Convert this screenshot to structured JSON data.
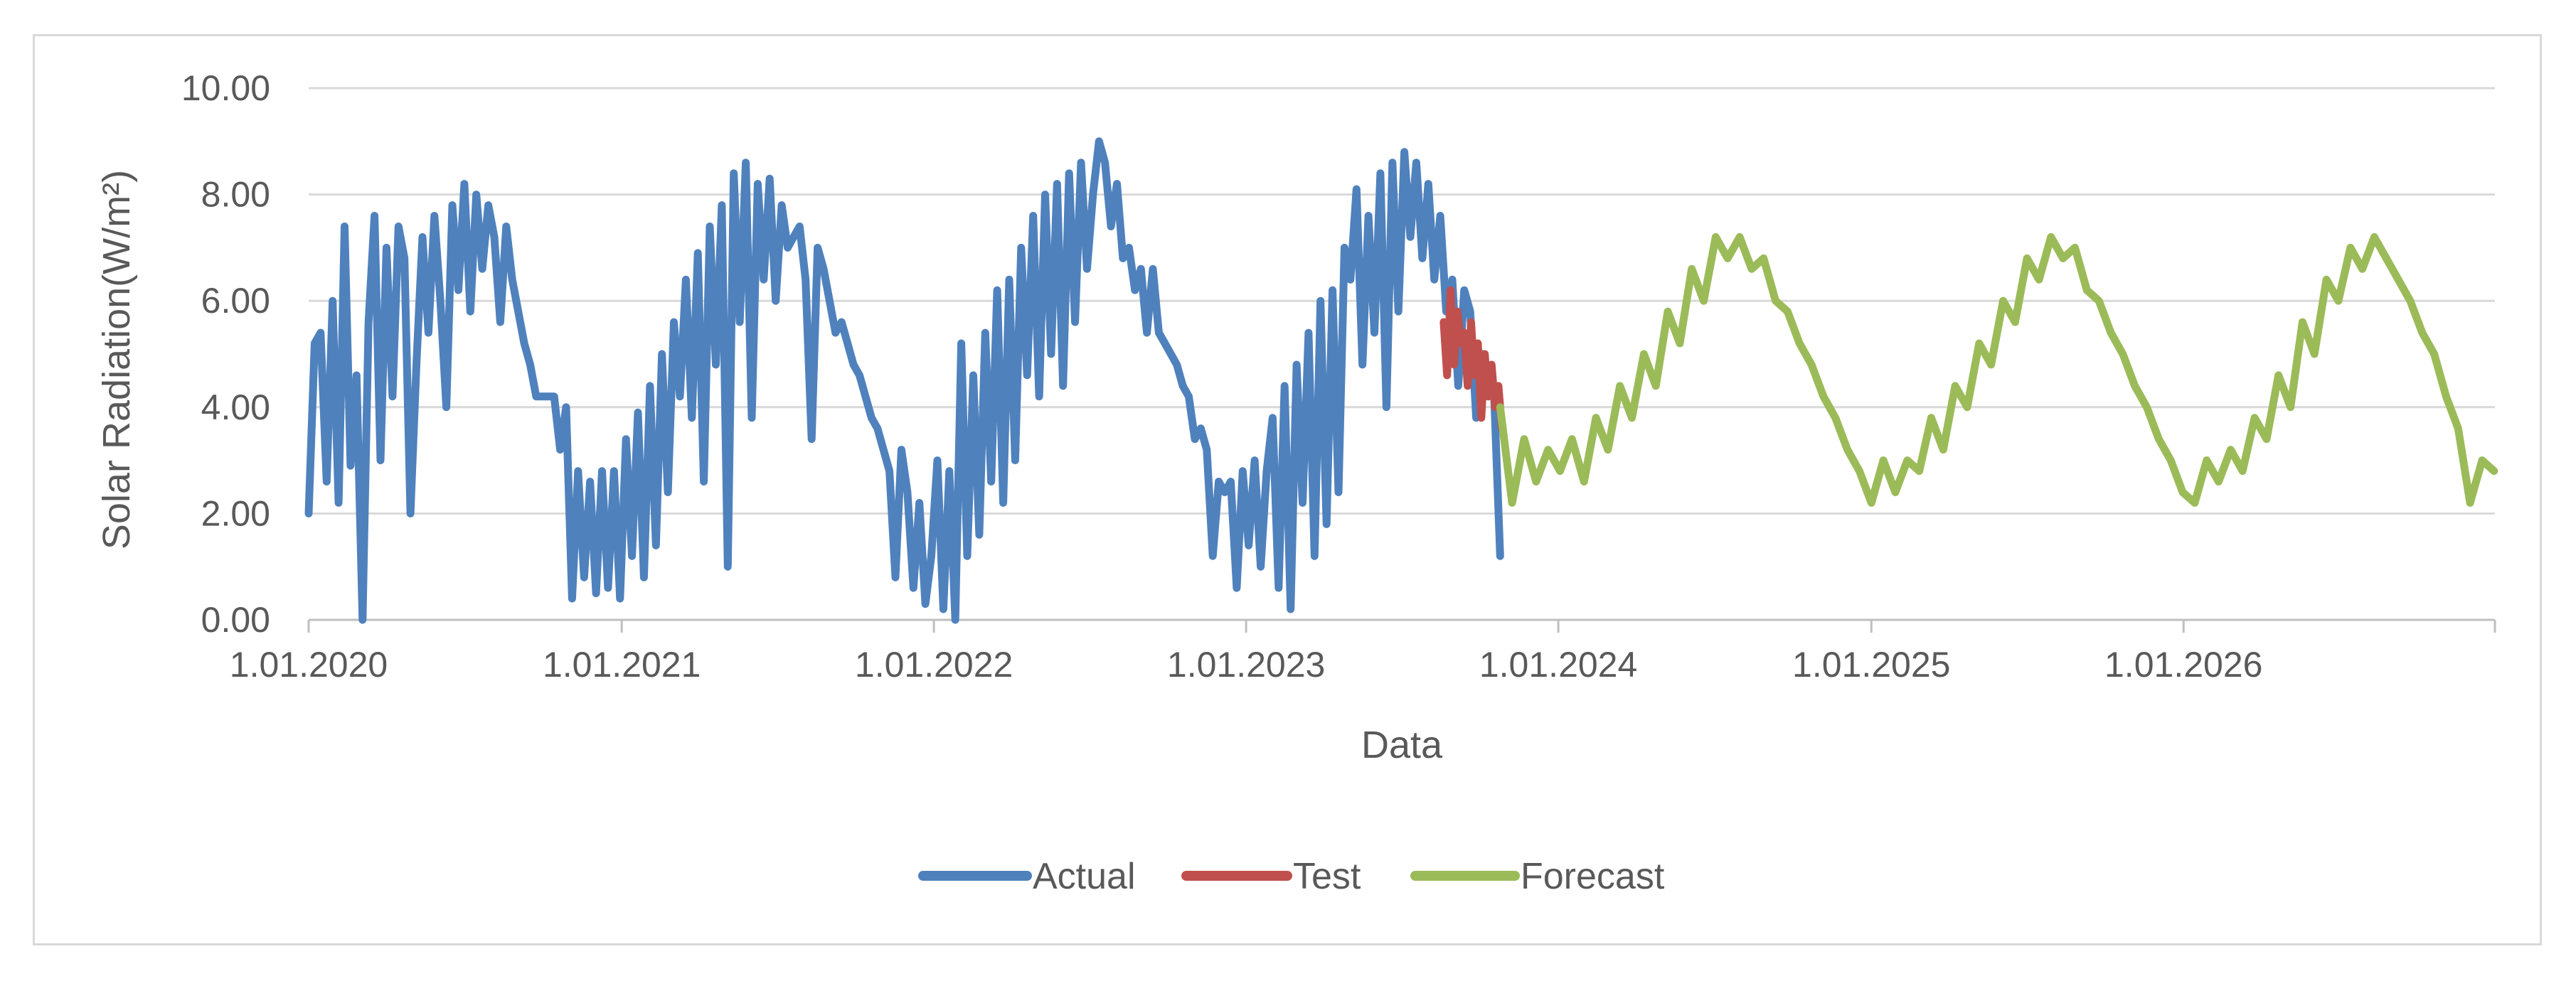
{
  "chart_data": {
    "type": "line",
    "xlabel": "Data",
    "ylabel": "Solar Radiation(W/m²)",
    "ylim": [
      0,
      10
    ],
    "yticks": [
      "0.00",
      "2.00",
      "4.00",
      "6.00",
      "8.00",
      "10.00"
    ],
    "xlim": [
      "2020-01-01",
      "2026-12-31"
    ],
    "xticks": [
      {
        "date": "2020-01-01",
        "label": "1.01.2020"
      },
      {
        "date": "2021-01-01",
        "label": "1.01.2021"
      },
      {
        "date": "2022-01-01",
        "label": "1.01.2022"
      },
      {
        "date": "2023-01-01",
        "label": "1.01.2023"
      },
      {
        "date": "2024-01-01",
        "label": "1.01.2024"
      },
      {
        "date": "2025-01-01",
        "label": "1.01.2025"
      },
      {
        "date": "2026-01-01",
        "label": "1.01.2026"
      }
    ],
    "grid": true,
    "legend_position": "bottom",
    "series": [
      {
        "name": "Actual",
        "color": "#4f81bd",
        "dates": [
          "2020-01-01",
          "2020-01-08",
          "2020-01-15",
          "2020-01-22",
          "2020-01-29",
          "2020-02-05",
          "2020-02-12",
          "2020-02-19",
          "2020-02-26",
          "2020-03-04",
          "2020-03-11",
          "2020-03-18",
          "2020-03-25",
          "2020-04-01",
          "2020-04-08",
          "2020-04-15",
          "2020-04-22",
          "2020-04-29",
          "2020-05-06",
          "2020-05-13",
          "2020-05-20",
          "2020-05-27",
          "2020-06-03",
          "2020-06-10",
          "2020-06-17",
          "2020-06-24",
          "2020-07-01",
          "2020-07-08",
          "2020-07-15",
          "2020-07-22",
          "2020-07-29",
          "2020-08-05",
          "2020-08-12",
          "2020-08-19",
          "2020-08-26",
          "2020-09-02",
          "2020-09-09",
          "2020-09-16",
          "2020-09-23",
          "2020-09-30",
          "2020-10-07",
          "2020-10-14",
          "2020-10-21",
          "2020-10-28",
          "2020-11-04",
          "2020-11-11",
          "2020-11-18",
          "2020-11-25",
          "2020-12-02",
          "2020-12-09",
          "2020-12-16",
          "2020-12-23",
          "2020-12-30",
          "2021-01-06",
          "2021-01-13",
          "2021-01-20",
          "2021-01-27",
          "2021-02-03",
          "2021-02-10",
          "2021-02-17",
          "2021-02-24",
          "2021-03-03",
          "2021-03-10",
          "2021-03-17",
          "2021-03-24",
          "2021-03-31",
          "2021-04-07",
          "2021-04-14",
          "2021-04-21",
          "2021-04-28",
          "2021-05-05",
          "2021-05-12",
          "2021-05-19",
          "2021-05-26",
          "2021-06-02",
          "2021-06-09",
          "2021-06-16",
          "2021-06-23",
          "2021-06-30",
          "2021-07-07",
          "2021-07-14",
          "2021-07-21",
          "2021-07-28",
          "2021-08-04",
          "2021-08-11",
          "2021-08-18",
          "2021-08-25",
          "2021-09-01",
          "2021-09-08",
          "2021-09-15",
          "2021-09-22",
          "2021-09-29",
          "2021-10-06",
          "2021-10-13",
          "2021-10-20",
          "2021-10-27",
          "2021-11-03",
          "2021-11-10",
          "2021-11-17",
          "2021-11-24",
          "2021-12-01",
          "2021-12-08",
          "2021-12-15",
          "2021-12-22",
          "2021-12-29",
          "2022-01-05",
          "2022-01-12",
          "2022-01-19",
          "2022-01-26",
          "2022-02-02",
          "2022-02-09",
          "2022-02-16",
          "2022-02-23",
          "2022-03-02",
          "2022-03-09",
          "2022-03-16",
          "2022-03-23",
          "2022-03-30",
          "2022-04-06",
          "2022-04-13",
          "2022-04-20",
          "2022-04-27",
          "2022-05-04",
          "2022-05-11",
          "2022-05-18",
          "2022-05-25",
          "2022-06-01",
          "2022-06-08",
          "2022-06-15",
          "2022-06-22",
          "2022-06-29",
          "2022-07-06",
          "2022-07-13",
          "2022-07-20",
          "2022-07-27",
          "2022-08-03",
          "2022-08-10",
          "2022-08-17",
          "2022-08-24",
          "2022-08-31",
          "2022-09-07",
          "2022-09-14",
          "2022-09-21",
          "2022-09-28",
          "2022-10-05",
          "2022-10-12",
          "2022-10-19",
          "2022-10-26",
          "2022-11-02",
          "2022-11-09",
          "2022-11-16",
          "2022-11-23",
          "2022-11-30",
          "2022-12-07",
          "2022-12-14",
          "2022-12-21",
          "2022-12-28",
          "2023-01-04",
          "2023-01-11",
          "2023-01-18",
          "2023-01-25",
          "2023-02-01",
          "2023-02-08",
          "2023-02-15",
          "2023-02-22",
          "2023-03-01",
          "2023-03-08",
          "2023-03-15",
          "2023-03-22",
          "2023-03-29",
          "2023-04-05",
          "2023-04-12",
          "2023-04-19",
          "2023-04-26",
          "2023-05-03",
          "2023-05-10",
          "2023-05-17",
          "2023-05-24",
          "2023-05-31",
          "2023-06-07",
          "2023-06-14",
          "2023-06-21",
          "2023-06-28",
          "2023-07-05",
          "2023-07-12",
          "2023-07-19",
          "2023-07-26",
          "2023-08-02",
          "2023-08-09",
          "2023-08-16",
          "2023-08-23",
          "2023-08-30",
          "2023-09-06",
          "2023-09-13",
          "2023-09-20",
          "2023-09-27",
          "2023-10-04",
          "2023-10-11",
          "2023-10-18",
          "2023-10-25"
        ],
        "values": [
          2.0,
          5.2,
          5.4,
          2.6,
          6.0,
          2.2,
          7.4,
          2.9,
          4.6,
          0.0,
          5.6,
          7.6,
          3.0,
          7.0,
          4.2,
          7.4,
          6.8,
          2.0,
          4.8,
          7.2,
          5.4,
          7.6,
          6.0,
          4.0,
          7.8,
          6.2,
          8.2,
          5.8,
          8.0,
          6.6,
          7.8,
          7.2,
          5.6,
          7.4,
          6.4,
          5.8,
          5.2,
          4.8,
          4.2,
          4.2,
          4.2,
          4.2,
          3.2,
          4.0,
          0.4,
          2.8,
          0.8,
          2.6,
          0.5,
          2.8,
          0.6,
          2.8,
          0.4,
          3.4,
          1.2,
          3.9,
          0.8,
          4.4,
          1.4,
          5.0,
          2.4,
          5.6,
          4.2,
          6.4,
          3.8,
          6.9,
          2.6,
          7.4,
          4.8,
          7.8,
          1.0,
          8.4,
          5.6,
          8.6,
          3.8,
          8.2,
          6.4,
          8.3,
          6.0,
          7.8,
          7.0,
          7.2,
          7.4,
          6.4,
          3.4,
          7.0,
          6.6,
          6.0,
          5.4,
          5.6,
          5.2,
          4.8,
          4.6,
          4.2,
          3.8,
          3.6,
          3.2,
          2.8,
          0.8,
          3.2,
          2.4,
          0.6,
          2.2,
          0.3,
          1.2,
          3.0,
          0.2,
          2.8,
          0.0,
          5.2,
          1.2,
          4.6,
          1.6,
          5.4,
          2.6,
          6.2,
          2.2,
          6.4,
          3.0,
          7.0,
          4.6,
          7.6,
          4.2,
          8.0,
          5.0,
          8.2,
          4.4,
          8.4,
          5.6,
          8.6,
          6.6,
          8.0,
          9.0,
          8.6,
          7.4,
          8.2,
          6.8,
          7.0,
          6.2,
          6.6,
          5.4,
          6.6,
          5.4,
          5.2,
          5.0,
          4.8,
          4.4,
          4.2,
          3.4,
          3.6,
          3.2,
          1.2,
          2.6,
          2.4,
          2.6,
          0.6,
          2.8,
          1.4,
          3.0,
          1.0,
          2.8,
          3.8,
          0.6,
          4.4,
          0.2,
          4.8,
          2.2,
          5.4,
          1.2,
          6.0,
          1.8,
          6.2,
          2.4,
          7.0,
          6.4,
          8.1,
          4.8,
          7.6,
          5.4,
          8.4,
          4.0,
          8.6,
          5.8,
          8.8,
          7.2,
          8.6,
          6.8,
          8.2,
          6.4,
          7.6,
          5.8,
          6.4,
          4.4,
          6.2,
          5.8,
          3.8,
          5.0,
          4.6,
          4.2,
          1.2
        ]
      },
      {
        "name": "Test",
        "color": "#c0504d",
        "dates": [
          "2023-08-20",
          "2023-08-24",
          "2023-08-28",
          "2023-09-01",
          "2023-09-05",
          "2023-09-09",
          "2023-09-13",
          "2023-09-17",
          "2023-09-21",
          "2023-09-25",
          "2023-09-29",
          "2023-10-03",
          "2023-10-07",
          "2023-10-11",
          "2023-10-15",
          "2023-10-19",
          "2023-10-23",
          "2023-10-27"
        ],
        "values": [
          5.6,
          4.6,
          6.2,
          4.8,
          5.8,
          5.2,
          5.4,
          4.4,
          5.6,
          4.6,
          5.2,
          3.8,
          5.0,
          4.2,
          4.8,
          4.0,
          4.4,
          3.6
        ]
      },
      {
        "name": "Forecast",
        "color": "#9bbb59",
        "dates": [
          "2023-10-25",
          "2023-11-08",
          "2023-11-22",
          "2023-12-06",
          "2023-12-20",
          "2024-01-03",
          "2024-01-17",
          "2024-01-31",
          "2024-02-14",
          "2024-02-28",
          "2024-03-13",
          "2024-03-27",
          "2024-04-10",
          "2024-04-24",
          "2024-05-08",
          "2024-05-22",
          "2024-06-05",
          "2024-06-19",
          "2024-07-03",
          "2024-07-17",
          "2024-07-31",
          "2024-08-14",
          "2024-08-28",
          "2024-09-11",
          "2024-09-25",
          "2024-10-09",
          "2024-10-23",
          "2024-11-06",
          "2024-11-20",
          "2024-12-04",
          "2024-12-18",
          "2025-01-01",
          "2025-01-15",
          "2025-01-29",
          "2025-02-12",
          "2025-02-26",
          "2025-03-12",
          "2025-03-26",
          "2025-04-09",
          "2025-04-23",
          "2025-05-07",
          "2025-05-21",
          "2025-06-04",
          "2025-06-18",
          "2025-07-02",
          "2025-07-16",
          "2025-07-30",
          "2025-08-13",
          "2025-08-27",
          "2025-09-10",
          "2025-09-24",
          "2025-10-08",
          "2025-10-22",
          "2025-11-05",
          "2025-11-19",
          "2025-12-03",
          "2025-12-17",
          "2025-12-31",
          "2026-01-14",
          "2026-01-28",
          "2026-02-11",
          "2026-02-25",
          "2026-03-11",
          "2026-03-25",
          "2026-04-08",
          "2026-04-22",
          "2026-05-06",
          "2026-05-20",
          "2026-06-03",
          "2026-06-17",
          "2026-07-01",
          "2026-07-15",
          "2026-07-29",
          "2026-08-12",
          "2026-08-26",
          "2026-09-09",
          "2026-09-23",
          "2026-10-07",
          "2026-10-21",
          "2026-11-04",
          "2026-11-18",
          "2026-12-02",
          "2026-12-16",
          "2026-12-30"
        ],
        "values": [
          4.0,
          2.2,
          3.4,
          2.6,
          3.2,
          2.8,
          3.4,
          2.6,
          3.8,
          3.2,
          4.4,
          3.8,
          5.0,
          4.4,
          5.8,
          5.2,
          6.6,
          6.0,
          7.2,
          6.8,
          7.2,
          6.6,
          6.8,
          6.0,
          5.8,
          5.2,
          4.8,
          4.2,
          3.8,
          3.2,
          2.8,
          2.2,
          3.0,
          2.4,
          3.0,
          2.8,
          3.8,
          3.2,
          4.4,
          4.0,
          5.2,
          4.8,
          6.0,
          5.6,
          6.8,
          6.4,
          7.2,
          6.8,
          7.0,
          6.2,
          6.0,
          5.4,
          5.0,
          4.4,
          4.0,
          3.4,
          3.0,
          2.4,
          2.2,
          3.0,
          2.6,
          3.2,
          2.8,
          3.8,
          3.4,
          4.6,
          4.0,
          5.6,
          5.0,
          6.4,
          6.0,
          7.0,
          6.6,
          7.2,
          6.8,
          6.4,
          6.0,
          5.4,
          5.0,
          4.2,
          3.6,
          2.2,
          3.0,
          2.8
        ]
      }
    ]
  }
}
